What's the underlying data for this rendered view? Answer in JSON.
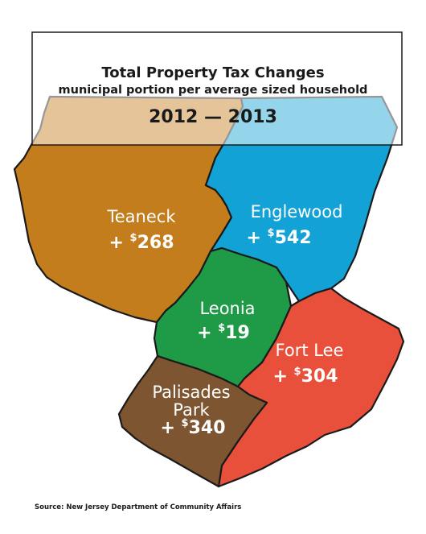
{
  "title": {
    "line1": "Total Property Tax Changes",
    "line2": "municipal portion per average sized household",
    "line3": "2012 — 2013"
  },
  "regions": [
    {
      "id": "teaneck",
      "name": "Teaneck",
      "prefix": "+ ",
      "currency": "$",
      "amount": "268",
      "color": "#c37d1c"
    },
    {
      "id": "englewood",
      "name": "Englewood",
      "prefix": "+ ",
      "currency": "$",
      "amount": "542",
      "color": "#13a2d6"
    },
    {
      "id": "leonia",
      "name": "Leonia",
      "prefix": "+ ",
      "currency": "$",
      "amount": "19",
      "color": "#1f9a47"
    },
    {
      "id": "fort-lee",
      "name": "Fort Lee",
      "prefix": "+ ",
      "currency": "$",
      "amount": "304",
      "color": "#e8503b"
    },
    {
      "id": "palisades-park",
      "name_line1": "Palisades",
      "name_line2": "Park",
      "prefix": "+ ",
      "currency": "$",
      "amount": "340",
      "color": "#7d5530"
    }
  ],
  "source": "Source: New Jersey Department of Community Affairs"
}
